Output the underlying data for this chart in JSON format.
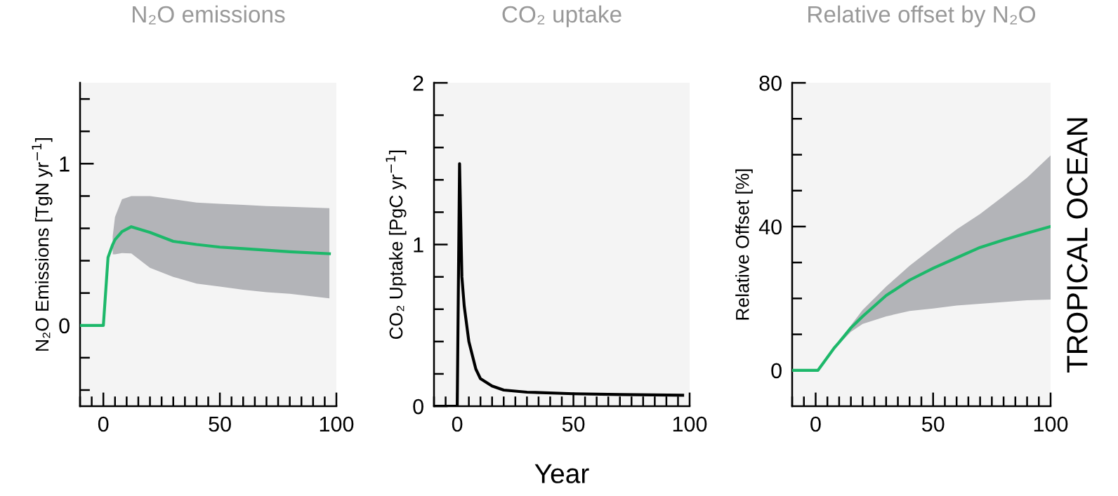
{
  "chart_data": [
    {
      "type": "line",
      "title": "N₂O emissions",
      "ylabel": "N₂O Emissions [TgN yr$^{−1}$]",
      "xlim": [
        -10,
        100
      ],
      "xticks": [
        {
          "value": -10,
          "label": null
        },
        {
          "value": -5,
          "label": null
        },
        0,
        {
          "value": 5,
          "label": null
        },
        {
          "value": 10,
          "label": null
        },
        {
          "value": 15,
          "label": null
        },
        {
          "value": 20,
          "label": null
        },
        {
          "value": 25,
          "label": null
        },
        {
          "value": 30,
          "label": null
        },
        {
          "value": 35,
          "label": null
        },
        {
          "value": 40,
          "label": null
        },
        {
          "value": 45,
          "label": null
        },
        50,
        {
          "value": 55,
          "label": null
        },
        {
          "value": 60,
          "label": null
        },
        {
          "value": 65,
          "label": null
        },
        {
          "value": 70,
          "label": null
        },
        {
          "value": 75,
          "label": null
        },
        {
          "value": 80,
          "label": null
        },
        {
          "value": 85,
          "label": null
        },
        {
          "value": 90,
          "label": null
        },
        {
          "value": 95,
          "label": null
        },
        100
      ],
      "ylim": [
        -0.5,
        1.5
      ],
      "yticks": [
        {
          "value": -0.4,
          "label": null
        },
        {
          "value": -0.2,
          "label": null
        },
        0,
        {
          "value": 0.2,
          "label": null
        },
        {
          "value": 0.4,
          "label": null
        },
        {
          "value": 0.6,
          "label": null
        },
        {
          "value": 0.8,
          "label": null
        },
        1,
        {
          "value": 1.2,
          "label": null
        },
        {
          "value": 1.4,
          "label": null
        }
      ],
      "series": [
        {
          "color": "#1db86a",
          "x": [
            -10,
            0,
            2,
            4,
            5,
            8,
            12,
            20,
            30,
            40,
            50,
            60,
            70,
            80,
            97
          ],
          "values": [
            0,
            0,
            0.42,
            0.5,
            0.53,
            0.58,
            0.61,
            0.575,
            0.52,
            0.5,
            0.484,
            0.475,
            0.465,
            0.455,
            0.443
          ],
          "lower": [
            null,
            null,
            null,
            0.44,
            0.44,
            0.447,
            0.445,
            0.356,
            0.3,
            0.258,
            0.24,
            0.22,
            0.205,
            0.195,
            0.167
          ],
          "upper": [
            null,
            null,
            null,
            0.55,
            0.67,
            0.78,
            0.8,
            0.8,
            0.78,
            0.76,
            0.752,
            0.745,
            0.738,
            0.733,
            0.725
          ]
        }
      ]
    },
    {
      "type": "line",
      "title": "CO₂ uptake",
      "ylabel": "CO₂ Uptake [PgC yr$^{−1}$]",
      "xlabel": "Year",
      "xlim": [
        -10,
        100
      ],
      "xticks": [
        {
          "value": -10,
          "label": null
        },
        {
          "value": -5,
          "label": null
        },
        0,
        {
          "value": 5,
          "label": null
        },
        {
          "value": 10,
          "label": null
        },
        {
          "value": 15,
          "label": null
        },
        {
          "value": 20,
          "label": null
        },
        {
          "value": 25,
          "label": null
        },
        {
          "value": 30,
          "label": null
        },
        {
          "value": 35,
          "label": null
        },
        {
          "value": 40,
          "label": null
        },
        {
          "value": 45,
          "label": null
        },
        50,
        {
          "value": 55,
          "label": null
        },
        {
          "value": 60,
          "label": null
        },
        {
          "value": 65,
          "label": null
        },
        {
          "value": 70,
          "label": null
        },
        {
          "value": 75,
          "label": null
        },
        {
          "value": 80,
          "label": null
        },
        {
          "value": 85,
          "label": null
        },
        {
          "value": 90,
          "label": null
        },
        {
          "value": 95,
          "label": null
        },
        100
      ],
      "ylim": [
        0,
        2
      ],
      "yticks": [
        0,
        {
          "value": 0.2,
          "label": null
        },
        {
          "value": 0.4,
          "label": null
        },
        {
          "value": 0.6,
          "label": null
        },
        {
          "value": 0.8,
          "label": null
        },
        1,
        {
          "value": 1.2,
          "label": null
        },
        {
          "value": 1.4,
          "label": null
        },
        {
          "value": 1.6,
          "label": null
        },
        {
          "value": 1.8,
          "label": null
        },
        2
      ],
      "series": [
        {
          "color": "#000000",
          "x": [
            -10,
            0,
            1,
            2,
            3,
            5,
            8,
            10,
            15,
            20,
            30,
            50,
            70,
            97
          ],
          "values": [
            0,
            0,
            1.5,
            0.8,
            0.62,
            0.4,
            0.23,
            0.17,
            0.125,
            0.1,
            0.087,
            0.077,
            0.072,
            0.068
          ]
        }
      ]
    },
    {
      "type": "line",
      "title": "Relative offset by N₂O",
      "ylabel": "Relative Offset [%]",
      "annotations": [
        "TROPICAL OCEAN"
      ],
      "xlim": [
        -10,
        100
      ],
      "xticks": [
        {
          "value": -10,
          "label": null
        },
        {
          "value": -5,
          "label": null
        },
        0,
        {
          "value": 5,
          "label": null
        },
        {
          "value": 10,
          "label": null
        },
        {
          "value": 15,
          "label": null
        },
        {
          "value": 20,
          "label": null
        },
        {
          "value": 25,
          "label": null
        },
        {
          "value": 30,
          "label": null
        },
        {
          "value": 35,
          "label": null
        },
        {
          "value": 40,
          "label": null
        },
        {
          "value": 45,
          "label": null
        },
        50,
        {
          "value": 55,
          "label": null
        },
        {
          "value": 60,
          "label": null
        },
        {
          "value": 65,
          "label": null
        },
        {
          "value": 70,
          "label": null
        },
        {
          "value": 75,
          "label": null
        },
        {
          "value": 80,
          "label": null
        },
        {
          "value": 85,
          "label": null
        },
        {
          "value": 90,
          "label": null
        },
        {
          "value": 95,
          "label": null
        },
        100
      ],
      "ylim": [
        -10,
        80
      ],
      "yticks": [
        0,
        {
          "value": 10,
          "label": null
        },
        {
          "value": 20,
          "label": null
        },
        {
          "value": 30,
          "label": null
        },
        40,
        {
          "value": 50,
          "label": null
        },
        {
          "value": 60,
          "label": null
        },
        {
          "value": 70,
          "label": null
        },
        80
      ],
      "series": [
        {
          "color": "#1db86a",
          "x": [
            -10,
            1,
            8,
            10,
            15,
            20,
            30,
            40,
            50,
            60,
            70,
            80,
            90,
            100
          ],
          "values": [
            0,
            0,
            6.3,
            7.8,
            11.8,
            15,
            20.8,
            25.1,
            28.4,
            31.3,
            34.2,
            36.3,
            38.2,
            40
          ],
          "lower": [
            null,
            null,
            6.3,
            7.3,
            10.7,
            12.9,
            15,
            16.5,
            17.2,
            18,
            18.5,
            19,
            19.5,
            19.7
          ],
          "upper": [
            null,
            null,
            6.3,
            8,
            12.5,
            16.8,
            23.3,
            29.1,
            34.2,
            39.2,
            43.5,
            48.5,
            53.6,
            59.8
          ]
        }
      ]
    }
  ]
}
